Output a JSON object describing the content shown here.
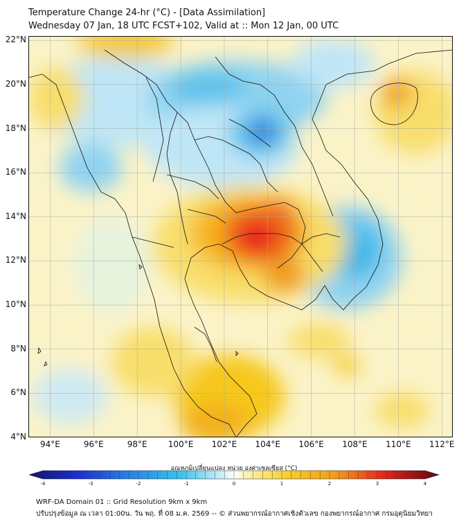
{
  "header": {
    "title_line1": "Temperature Change 24-hr (°C) - [Data Assimilation]",
    "title_line2": "Wednesday 07 Jan, 18 UTC FCST+102, Valid at :: Mon 12 Jan, 00 UTC"
  },
  "map": {
    "lat_labels": [
      "22°N",
      "20°N",
      "18°N",
      "16°N",
      "14°N",
      "12°N",
      "10°N",
      "8°N",
      "6°N",
      "4°N"
    ],
    "lon_labels": [
      "94°E",
      "96°E",
      "98°E",
      "100°E",
      "102°E",
      "104°E",
      "106°E",
      "108°E",
      "110°E",
      "112°E"
    ],
    "lat_range": [
      4,
      22.2
    ],
    "lon_range": [
      93,
      112.5
    ]
  },
  "colorbar": {
    "title": "อุณหภูมิเปลี่ยนแปลง หน่วย องศาเซลเซียส (°C)",
    "ticks": [
      "-4",
      "-3",
      "-2",
      "-1",
      "0",
      "1",
      "2",
      "3",
      "4"
    ],
    "range": [
      -4,
      4
    ]
  },
  "footer": {
    "line1": "WRF-DA Domain 01 :: Grid Resolution 9km x 9km",
    "line2": "ปรับปรุงข้อมูล ณ เวลา 01:00น. วัน พฤ. ที่ 08 ม.ค. 2569 -- © ส่วนพยากรณ์อากาศเชิงตัวเลข กองพยากรณ์อากาศ กรมอุตุนิยมวิทยา"
  },
  "colors": {
    "warm_max": "#e8261a",
    "warm_mid": "#f6c81a",
    "warm_low": "#fbf0a2",
    "cool_low": "#bfe6f6",
    "cool_mid": "#38b6e8",
    "cool_max": "#1c4fd0",
    "border": "#111111",
    "grid": "#a8a8a8"
  }
}
